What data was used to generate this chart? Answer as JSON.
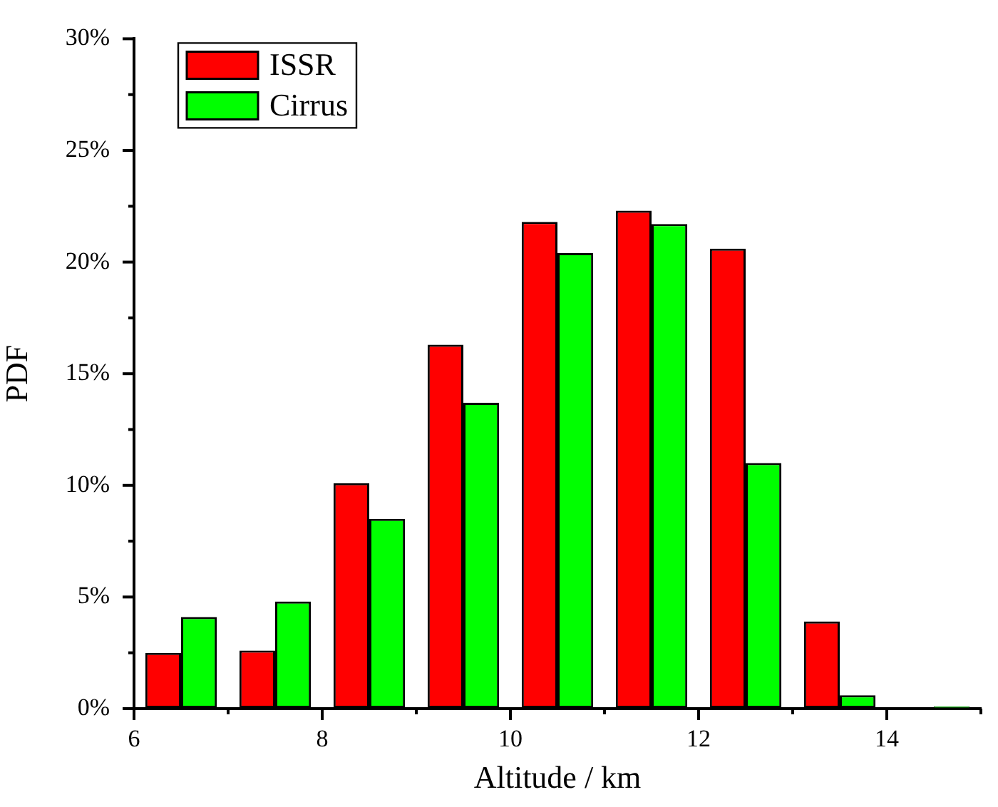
{
  "chart_data": {
    "type": "bar",
    "xlabel": "Altitude / km",
    "ylabel": "PDF",
    "x": [
      6.5,
      7.5,
      8.5,
      9.5,
      10.5,
      11.5,
      12.5,
      13.5,
      14.5
    ],
    "series": [
      {
        "name": "ISSR",
        "color": "#ff0000",
        "values": [
          2.5,
          2.6,
          10.1,
          16.3,
          21.8,
          22.3,
          20.6,
          3.9,
          null
        ]
      },
      {
        "name": "Cirrus",
        "color": "#00ff00",
        "values": [
          4.1,
          4.8,
          8.5,
          13.7,
          20.4,
          21.7,
          11.0,
          0.6,
          0.1
        ]
      }
    ],
    "xlim": [
      6,
      15
    ],
    "xticks": [
      6,
      {
        "value": 7,
        "label": null
      },
      8,
      {
        "value": 9,
        "label": null
      },
      10,
      {
        "value": 11,
        "label": null
      },
      12,
      {
        "value": 13,
        "label": null
      },
      14,
      {
        "value": 15,
        "label": null
      }
    ],
    "ylim": [
      0,
      30
    ],
    "yticks": [
      {
        "value": 0,
        "label": "0%"
      },
      {
        "value": 2.5,
        "label": null
      },
      {
        "value": 5,
        "label": "5%"
      },
      {
        "value": 7.5,
        "label": null
      },
      {
        "value": 10,
        "label": "10%"
      },
      {
        "value": 12.5,
        "label": null
      },
      {
        "value": 15,
        "label": "15%"
      },
      {
        "value": 17.5,
        "label": null
      },
      {
        "value": 20,
        "label": "20%"
      },
      {
        "value": 22.5,
        "label": null
      },
      {
        "value": 25,
        "label": "25%"
      },
      {
        "value": 27.5,
        "label": null
      },
      {
        "value": 30,
        "label": "30%"
      }
    ],
    "legend": "top left"
  }
}
